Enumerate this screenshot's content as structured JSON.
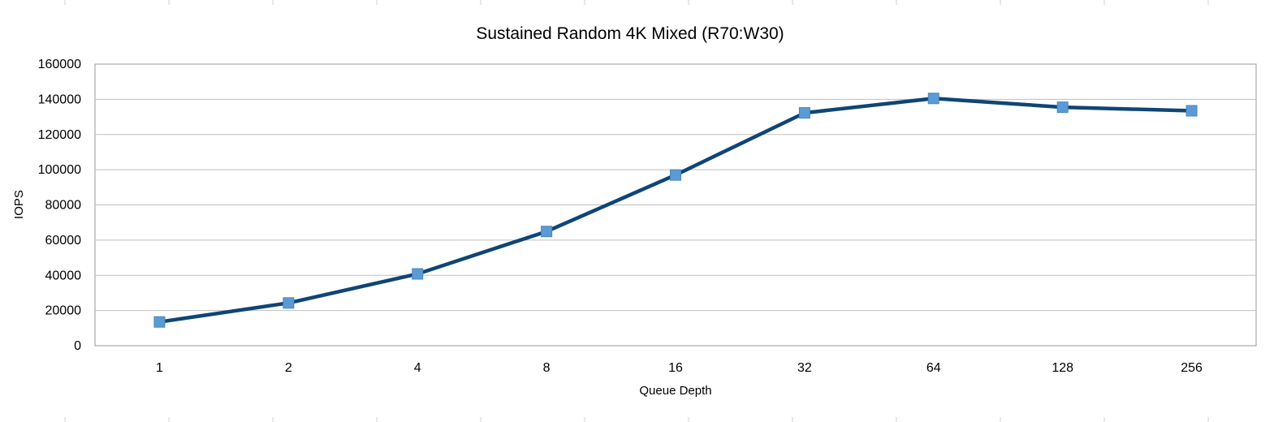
{
  "chart_data": {
    "type": "line",
    "title": "Sustained Random 4K Mixed (R70:W30)",
    "xlabel": "Queue Depth",
    "ylabel": "IOPS",
    "categories": [
      "1",
      "2",
      "4",
      "8",
      "16",
      "32",
      "64",
      "128",
      "256"
    ],
    "series": [
      {
        "values": [
          13500,
          24300,
          40800,
          64900,
          97000,
          132300,
          140500,
          135500,
          133500
        ]
      }
    ],
    "ylim": [
      0,
      160000
    ],
    "yticks": [
      "0",
      "20000",
      "40000",
      "60000",
      "80000",
      "100000",
      "120000",
      "140000",
      "160000"
    ],
    "grid": true,
    "legend": "none",
    "colors": {
      "line": "#0f4576",
      "marker": "#5b9bd5",
      "grid": "#bfbfbf",
      "frame": "#999999"
    }
  }
}
